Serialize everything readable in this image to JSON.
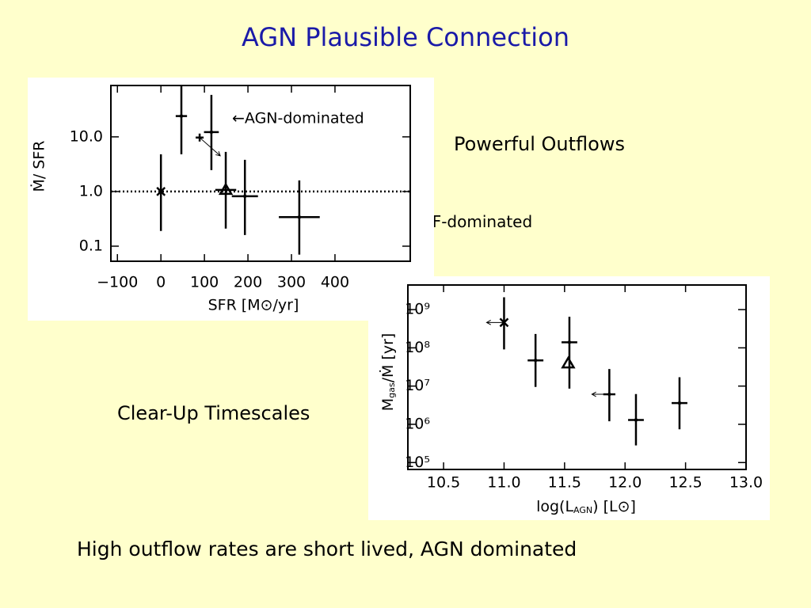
{
  "title": "AGN Plausible Connection",
  "annotations": {
    "powerful_outflows": "Powerful Outflows",
    "sf_dominated": "SF-dominated",
    "sf_arrow": "←",
    "clear_up": "Clear-Up Timescales",
    "agn_dominated": "←AGN-dominated"
  },
  "footer": "High outflow rates are short lived, AGN dominated",
  "chart_data": [
    {
      "type": "scatter",
      "log_y": true,
      "x_label": "SFR [M⊙/yr]",
      "y_label": "Ṁ/ SFR",
      "color": "#000000",
      "xlim": [
        -115,
        573
      ],
      "ylim": [
        0.053,
        87
      ],
      "xticks": [
        {
          "value": -100,
          "label": "−100"
        },
        0,
        100,
        200,
        300,
        400
      ],
      "yticks": [
        0.1,
        {
          "value": 1,
          "label": "1.0"
        },
        {
          "value": 10,
          "label": "10.0"
        }
      ],
      "reference_line": 1,
      "series": [
        {
          "x": [
            0,
            47,
            116,
            89,
            149,
            193,
            318
          ],
          "values": [
            1.0,
            24,
            12.2,
            9.7,
            1.07,
            0.82,
            0.34
          ],
          "y_low": [
            0.19,
            4.8,
            2.46,
            null,
            0.21,
            0.16,
            0.07
          ],
          "y_high": [
            4.8,
            87,
            58.5,
            null,
            5.3,
            3.8,
            1.6
          ],
          "xerr": [
            null,
            13,
            17,
            null,
            24,
            30,
            47
          ],
          "markers": [
            "x",
            null,
            null,
            "plus",
            "triangle",
            null,
            null
          ],
          "arrows": [
            null,
            null,
            null,
            "down-right",
            null,
            null,
            null
          ]
        }
      ]
    },
    {
      "type": "scatter",
      "log_y": true,
      "x_label": {
        "main": "log(L",
        "sub": "AGN",
        "rest": ") [L⊙]"
      },
      "y_label": {
        "main": "M",
        "sub": "gas",
        "rest": "/Ṁ [yr]"
      },
      "color": "#000000",
      "xlim": [
        10.205,
        13.0
      ],
      "ylim": [
        66000,
        4400000000
      ],
      "xticks": [
        10.5,
        {
          "value": 11,
          "label": "11.0"
        },
        11.5,
        {
          "value": 12,
          "label": "12.0"
        },
        12.5,
        {
          "value": 13,
          "label": "13.0"
        }
      ],
      "yticks": [
        {
          "value": 100000,
          "label": "10⁵"
        },
        {
          "value": 1000000,
          "label": "10⁶"
        },
        {
          "value": 10000000,
          "label": "10⁷"
        },
        {
          "value": 100000000,
          "label": "10⁸"
        },
        {
          "value": 1000000000,
          "label": "10⁹"
        }
      ],
      "series": [
        {
          "x": [
            11.0,
            11.26,
            11.54,
            11.53,
            11.87,
            12.09,
            12.45
          ],
          "values": [
            460000000,
            47000000,
            140000000,
            39000000,
            6100000,
            1300000,
            3600000
          ],
          "y_low": [
            91000000,
            9500000,
            8600000,
            null,
            1200000,
            280000,
            740000
          ],
          "y_high": [
            2100000000,
            230000000,
            650000000,
            null,
            28000000,
            6200000,
            17000000
          ],
          "xerr": [
            null,
            0.065,
            0.065,
            null,
            0.05,
            0.065,
            0.065
          ],
          "markers": [
            "x",
            null,
            null,
            "triangle",
            null,
            null,
            null
          ],
          "arrows": [
            "left",
            null,
            null,
            null,
            "left",
            null,
            null
          ]
        }
      ]
    }
  ]
}
